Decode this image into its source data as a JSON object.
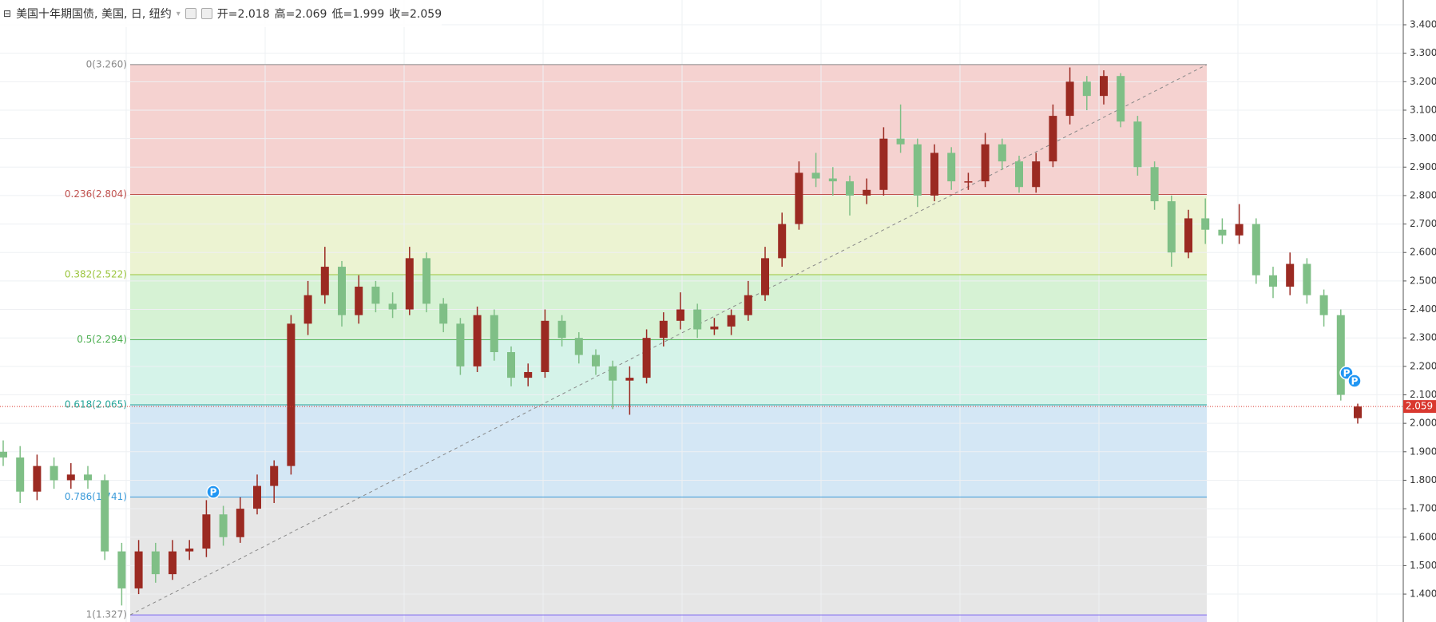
{
  "header": {
    "symbol": "美国十年期国债, 美国, 日, 纽约",
    "legend": [
      {
        "label": "开="
      },
      {
        "label": "高="
      },
      {
        "label": "低="
      },
      {
        "label": "收="
      }
    ]
  },
  "markers": [
    {
      "label": "P"
    },
    {
      "label": "P"
    },
    {
      "label": "P"
    }
  ],
  "chart_data": {
    "type": "candlestick",
    "ylim": [
      1.302,
      3.487
    ],
    "yticks": [
      {
        "value": 1.4,
        "label": "1.400"
      },
      {
        "value": 1.5,
        "label": "1.500"
      },
      {
        "value": 1.6,
        "label": "1.600"
      },
      {
        "value": 1.7,
        "label": "1.700"
      },
      {
        "value": 1.8,
        "label": "1.800"
      },
      {
        "value": 1.9,
        "label": "1.900"
      },
      {
        "value": 2.0,
        "label": "2.000"
      },
      {
        "value": 2.1,
        "label": "2.100"
      },
      {
        "value": 2.2,
        "label": "2.200"
      },
      {
        "value": 2.3,
        "label": "2.300"
      },
      {
        "value": 2.4,
        "label": "2.400"
      },
      {
        "value": 2.5,
        "label": "2.500"
      },
      {
        "value": 2.6,
        "label": "2.600"
      },
      {
        "value": 2.7,
        "label": "2.700"
      },
      {
        "value": 2.8,
        "label": "2.800"
      },
      {
        "value": 2.9,
        "label": "2.900"
      },
      {
        "value": 3.0,
        "label": "3.000"
      },
      {
        "value": 3.1,
        "label": "3.100"
      },
      {
        "value": 3.2,
        "label": "3.200"
      },
      {
        "value": 3.3,
        "label": "3.300"
      },
      {
        "value": 3.4,
        "label": "3.400"
      }
    ],
    "grid": true,
    "up_color": "#9b2a22",
    "down_color": "#7fbf86",
    "open": [
      1.9,
      1.88,
      1.76,
      1.85,
      1.8,
      1.82,
      1.8,
      1.55,
      1.42,
      1.55,
      1.47,
      1.55,
      1.56,
      1.68,
      1.6,
      1.7,
      1.78,
      1.85,
      2.35,
      2.45,
      2.55,
      2.38,
      2.48,
      2.42,
      2.4,
      2.58,
      2.42,
      2.35,
      2.2,
      2.38,
      2.25,
      2.16,
      2.18,
      2.36,
      2.3,
      2.24,
      2.2,
      2.15,
      2.16,
      2.3,
      2.36,
      2.4,
      2.33,
      2.34,
      2.38,
      2.45,
      2.58,
      2.7,
      2.88,
      2.86,
      2.85,
      2.8,
      2.82,
      3.0,
      2.98,
      2.8,
      2.95,
      2.85,
      2.85,
      2.98,
      2.92,
      2.83,
      2.92,
      3.08,
      3.2,
      3.15,
      3.22,
      3.06,
      2.9,
      2.78,
      2.6,
      2.72,
      2.68,
      2.66,
      2.7,
      2.52,
      2.48,
      2.56,
      2.45,
      2.38,
      2.018
    ],
    "high": [
      1.94,
      1.92,
      1.89,
      1.88,
      1.86,
      1.85,
      1.82,
      1.58,
      1.59,
      1.58,
      1.59,
      1.59,
      1.73,
      1.71,
      1.74,
      1.82,
      1.87,
      2.38,
      2.5,
      2.62,
      2.57,
      2.52,
      2.5,
      2.46,
      2.62,
      2.6,
      2.44,
      2.37,
      2.41,
      2.4,
      2.27,
      2.21,
      2.4,
      2.38,
      2.32,
      2.26,
      2.22,
      2.2,
      2.33,
      2.39,
      2.46,
      2.42,
      2.37,
      2.4,
      2.5,
      2.62,
      2.74,
      2.92,
      2.95,
      2.9,
      2.87,
      2.86,
      3.04,
      3.12,
      3.0,
      2.98,
      2.97,
      2.88,
      3.02,
      3.0,
      2.94,
      2.95,
      3.12,
      3.25,
      3.22,
      3.24,
      3.23,
      3.08,
      2.92,
      2.8,
      2.75,
      2.79,
      2.72,
      2.77,
      2.72,
      2.55,
      2.6,
      2.58,
      2.47,
      2.4,
      2.069
    ],
    "low": [
      1.85,
      1.72,
      1.73,
      1.77,
      1.77,
      1.77,
      1.52,
      1.36,
      1.4,
      1.44,
      1.45,
      1.52,
      1.53,
      1.57,
      1.58,
      1.68,
      1.72,
      1.82,
      2.31,
      2.42,
      2.34,
      2.35,
      2.39,
      2.37,
      2.38,
      2.39,
      2.32,
      2.17,
      2.18,
      2.22,
      2.13,
      2.13,
      2.16,
      2.27,
      2.21,
      2.17,
      2.05,
      2.03,
      2.14,
      2.27,
      2.33,
      2.3,
      2.31,
      2.31,
      2.36,
      2.43,
      2.55,
      2.68,
      2.83,
      2.8,
      2.73,
      2.77,
      2.8,
      2.95,
      2.76,
      2.78,
      2.82,
      2.82,
      2.83,
      2.89,
      2.81,
      2.81,
      2.9,
      3.05,
      3.1,
      3.12,
      3.04,
      2.87,
      2.75,
      2.55,
      2.58,
      2.63,
      2.63,
      2.63,
      2.49,
      2.44,
      2.45,
      2.42,
      2.34,
      2.08,
      1.999
    ],
    "close": [
      1.88,
      1.76,
      1.85,
      1.8,
      1.82,
      1.8,
      1.55,
      1.42,
      1.55,
      1.47,
      1.55,
      1.56,
      1.68,
      1.6,
      1.7,
      1.78,
      1.85,
      2.35,
      2.45,
      2.55,
      2.38,
      2.48,
      2.42,
      2.4,
      2.58,
      2.42,
      2.35,
      2.2,
      2.38,
      2.25,
      2.16,
      2.18,
      2.36,
      2.3,
      2.24,
      2.2,
      2.15,
      2.16,
      2.3,
      2.36,
      2.4,
      2.33,
      2.34,
      2.38,
      2.45,
      2.58,
      2.7,
      2.88,
      2.86,
      2.85,
      2.8,
      2.82,
      3.0,
      2.98,
      2.8,
      2.95,
      2.85,
      2.85,
      2.98,
      2.92,
      2.83,
      2.92,
      3.08,
      3.2,
      3.15,
      3.22,
      3.06,
      2.9,
      2.78,
      2.6,
      2.72,
      2.68,
      2.66,
      2.7,
      2.52,
      2.48,
      2.56,
      2.45,
      2.38,
      2.1,
      2.059
    ],
    "last_price_color": "#d9382f",
    "fib_levels": [
      {
        "price": 3.26,
        "label": "0(3.260)",
        "color": "#888888",
        "text_color": "#888888",
        "fill": "#f5d2d0"
      },
      {
        "price": 2.804,
        "label": "0.236(2.804)",
        "color": "#c0504d",
        "text_color": "#c0504d",
        "fill": "#ecf3d2"
      },
      {
        "price": 2.522,
        "label": "0.382(2.522)",
        "color": "#9bc53d",
        "text_color": "#9bc53d",
        "fill": "#d6f2d4"
      },
      {
        "price": 2.294,
        "label": "0.5(2.294)",
        "color": "#4caf50",
        "text_color": "#4caf50",
        "fill": "#d5f3e9"
      },
      {
        "price": 2.065,
        "label": "0.618(2.065)",
        "color": "#26a69a",
        "text_color": "#26a69a",
        "fill": "#d4e7f5"
      },
      {
        "price": 1.741,
        "label": "0.786(1.741)",
        "color": "#3a9ad9",
        "text_color": "#3a9ad9",
        "fill": "#e6e6e6"
      },
      {
        "price": 1.327,
        "label": "1(1.327)",
        "color": "#7b68ee",
        "text_color": "#888888",
        "fill": "#dcd6f5"
      }
    ]
  }
}
